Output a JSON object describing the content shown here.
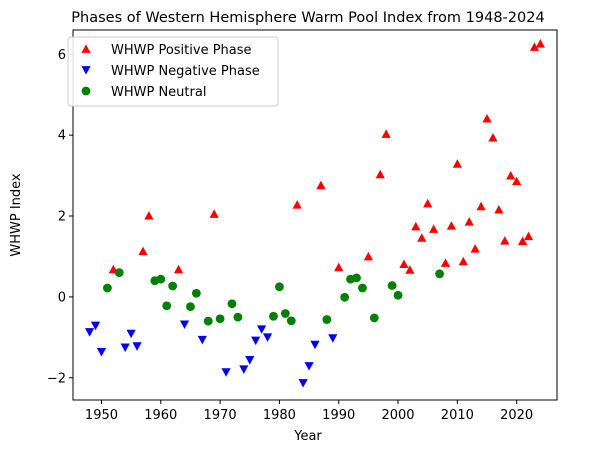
{
  "chart_data": {
    "type": "scatter",
    "title": "Phases of Western Hemisphere Warm Pool Index from 1948-2024",
    "xlabel": "Year",
    "ylabel": "WHWP Index",
    "xlim": [
      1945.2,
      2026.8
    ],
    "ylim": [
      -2.55,
      6.6
    ],
    "xticks": [
      1950,
      1960,
      1970,
      1980,
      1990,
      2000,
      2010,
      2020
    ],
    "yticks": [
      -2,
      0,
      2,
      4,
      6
    ],
    "grid": false,
    "legend": {
      "placement": "top-left"
    },
    "series": [
      {
        "name": "WHWP Positive Phase",
        "marker": "triangle-up",
        "color": "#ff0000",
        "points": [
          [
            1952,
            0.68
          ],
          [
            1957,
            1.13
          ],
          [
            1958,
            2.01
          ],
          [
            1963,
            0.68
          ],
          [
            1969,
            2.05
          ],
          [
            1983,
            2.28
          ],
          [
            1987,
            2.76
          ],
          [
            1990,
            0.73
          ],
          [
            1995,
            1.0
          ],
          [
            1997,
            3.03
          ],
          [
            1998,
            4.03
          ],
          [
            2001,
            0.81
          ],
          [
            2002,
            0.67
          ],
          [
            2003,
            1.74
          ],
          [
            2004,
            1.46
          ],
          [
            2005,
            2.31
          ],
          [
            2006,
            1.68
          ],
          [
            2008,
            0.84
          ],
          [
            2009,
            1.76
          ],
          [
            2010,
            3.29
          ],
          [
            2011,
            0.88
          ],
          [
            2012,
            1.86
          ],
          [
            2013,
            1.19
          ],
          [
            2014,
            2.24
          ],
          [
            2015,
            4.41
          ],
          [
            2016,
            3.94
          ],
          [
            2017,
            2.16
          ],
          [
            2018,
            1.39
          ],
          [
            2019,
            3.0
          ],
          [
            2020,
            2.86
          ],
          [
            2021,
            1.38
          ],
          [
            2022,
            1.5
          ],
          [
            2023,
            6.18
          ],
          [
            2024,
            6.26
          ]
        ]
      },
      {
        "name": "WHWP Negative Phase",
        "marker": "triangle-down",
        "color": "#0000ff",
        "points": [
          [
            1948,
            -0.87
          ],
          [
            1949,
            -0.71
          ],
          [
            1950,
            -1.36
          ],
          [
            1954,
            -1.25
          ],
          [
            1955,
            -0.91
          ],
          [
            1956,
            -1.22
          ],
          [
            1964,
            -0.68
          ],
          [
            1967,
            -1.06
          ],
          [
            1971,
            -1.86
          ],
          [
            1974,
            -1.79
          ],
          [
            1975,
            -1.56
          ],
          [
            1976,
            -1.08
          ],
          [
            1977,
            -0.8
          ],
          [
            1978,
            -1.0
          ],
          [
            1984,
            -2.13
          ],
          [
            1985,
            -1.71
          ],
          [
            1986,
            -1.18
          ],
          [
            1989,
            -1.02
          ]
        ]
      },
      {
        "name": "WHWP Neutral",
        "marker": "circle",
        "color": "#008000",
        "points": [
          [
            1951,
            0.22
          ],
          [
            1953,
            0.6
          ],
          [
            1959,
            0.4
          ],
          [
            1960,
            0.44
          ],
          [
            1961,
            -0.22
          ],
          [
            1962,
            0.27
          ],
          [
            1965,
            -0.24
          ],
          [
            1966,
            0.09
          ],
          [
            1968,
            -0.6
          ],
          [
            1970,
            -0.54
          ],
          [
            1972,
            -0.17
          ],
          [
            1973,
            -0.5
          ],
          [
            1979,
            -0.48
          ],
          [
            1980,
            0.25
          ],
          [
            1981,
            -0.41
          ],
          [
            1982,
            -0.59
          ],
          [
            1988,
            -0.56
          ],
          [
            1991,
            -0.01
          ],
          [
            1992,
            0.44
          ],
          [
            1993,
            0.47
          ],
          [
            1994,
            0.22
          ],
          [
            1996,
            -0.52
          ],
          [
            1999,
            0.28
          ],
          [
            2000,
            0.04
          ],
          [
            2007,
            0.57
          ]
        ]
      }
    ]
  }
}
